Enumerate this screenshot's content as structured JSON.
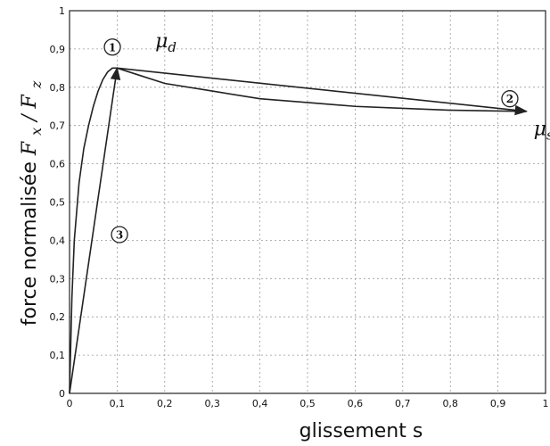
{
  "chart_data": {
    "type": "line",
    "xlabel": "glissement s",
    "ylabel_text": "force normalisée",
    "ylabel_math": {
      "base1": "F",
      "sub1": "x",
      "sep": "/",
      "base2": "F",
      "sub2": "z"
    },
    "xlim": [
      0,
      1
    ],
    "ylim": [
      0,
      1
    ],
    "x_ticks": [
      "0",
      "0,1",
      "0,2",
      "0,3",
      "0,4",
      "0,5",
      "0,6",
      "0,7",
      "0,8",
      "0,9",
      "1"
    ],
    "y_ticks": [
      "0",
      "0,1",
      "0,2",
      "0,3",
      "0,4",
      "0,5",
      "0,6",
      "0,7",
      "0,8",
      "0,9",
      "1"
    ],
    "grid": true,
    "series": [
      {
        "x": [
          0,
          0.005,
          0.01,
          0.02,
          0.03,
          0.04,
          0.05,
          0.06,
          0.07,
          0.08,
          0.09,
          0.1,
          0.15,
          0.2,
          0.3,
          0.4,
          0.5,
          0.6,
          0.7,
          0.8,
          0.9,
          0.96
        ],
        "y": [
          0,
          0.25,
          0.4,
          0.55,
          0.64,
          0.7,
          0.75,
          0.79,
          0.82,
          0.84,
          0.85,
          0.85,
          0.83,
          0.81,
          0.79,
          0.77,
          0.76,
          0.75,
          0.745,
          0.74,
          0.738,
          0.737
        ]
      },
      {
        "x": [
          0,
          0.1
        ],
        "y": [
          0,
          0.85
        ]
      },
      {
        "x": [
          0.1,
          0.96
        ],
        "y": [
          0.85,
          0.737
        ]
      }
    ],
    "annotations": [
      {
        "marker": "1",
        "x": 0.09,
        "y": 0.905,
        "symbol": "μ",
        "subscript": "d",
        "label_x": 0.18,
        "label_y": 0.905
      },
      {
        "marker": "2",
        "x": 0.925,
        "y": 0.77
      },
      {
        "marker": "3",
        "x": 0.105,
        "y": 0.415
      },
      {
        "symbol": "μ",
        "subscript": "s",
        "label_x": 0.975,
        "label_y": 0.675
      }
    ]
  }
}
